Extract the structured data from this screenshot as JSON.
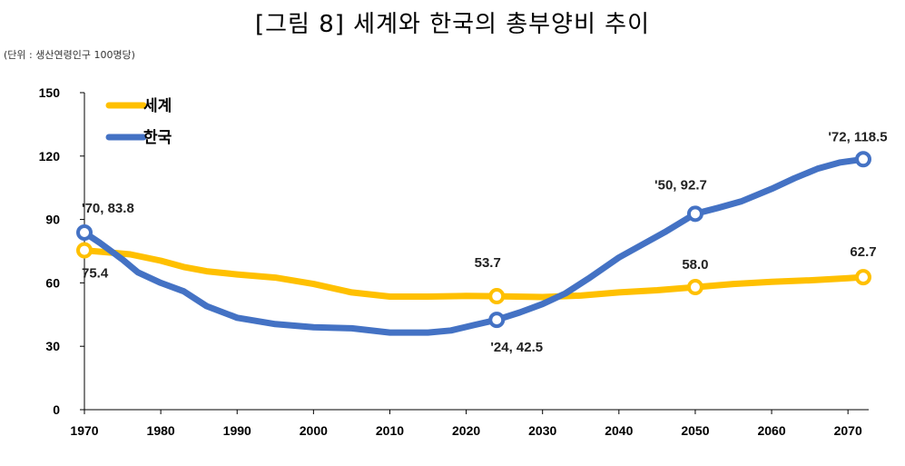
{
  "chart_data": {
    "type": "line",
    "title": "[그림 8] 세계와 한국의 총부양비 추이",
    "unit_note": "(단위 : 생산연령인구 100명당)",
    "xlabel": "",
    "ylabel": "",
    "xlim": [
      1970,
      2072
    ],
    "ylim": [
      0,
      150
    ],
    "x_ticks": [
      1970,
      1980,
      1990,
      2000,
      2010,
      2020,
      2030,
      2040,
      2050,
      2060,
      2070
    ],
    "y_ticks": [
      0,
      30,
      60,
      90,
      120,
      150
    ],
    "grid": false,
    "legend_position": "top-left",
    "series": [
      {
        "name": "세계",
        "color": "#FFC000",
        "x": [
          1970,
          1973,
          1976,
          1980,
          1983,
          1986,
          1990,
          1995,
          2000,
          2005,
          2010,
          2015,
          2020,
          2024,
          2030,
          2035,
          2040,
          2045,
          2050,
          2055,
          2060,
          2065,
          2070,
          2072
        ],
        "values": [
          75.4,
          74.5,
          73.5,
          70.5,
          67.5,
          65.5,
          64,
          62.5,
          59.5,
          55.5,
          53.5,
          53.5,
          53.8,
          53.7,
          53.3,
          54,
          55.5,
          56.5,
          58.0,
          59.5,
          60.5,
          61.2,
          62.2,
          62.7
        ]
      },
      {
        "name": "한국",
        "color": "#4472C4",
        "x": [
          1970,
          1972,
          1975,
          1977,
          1980,
          1983,
          1986,
          1990,
          1995,
          2000,
          2005,
          2010,
          2015,
          2018,
          2021,
          2024,
          2027,
          2030,
          2033,
          2036,
          2040,
          2043,
          2046,
          2050,
          2053,
          2056,
          2060,
          2063,
          2066,
          2069,
          2072
        ],
        "values": [
          83.8,
          79,
          71,
          65,
          60,
          56,
          49,
          43.5,
          40.5,
          39,
          38.5,
          36.5,
          36.5,
          37.5,
          40,
          42.5,
          46,
          50,
          55,
          62,
          72,
          78,
          84,
          92.7,
          95.5,
          98.5,
          104.5,
          109.5,
          114,
          117,
          118.5
        ]
      }
    ],
    "annotations": [
      {
        "series": "한국",
        "x": 1970,
        "y": 83.8,
        "text": "'70, 83.8",
        "marker": true
      },
      {
        "series": "세계",
        "x": 1970,
        "y": 75.4,
        "text": "75.4",
        "marker": true
      },
      {
        "series": "세계",
        "x": 2024,
        "y": 53.7,
        "text": "53.7",
        "marker": true
      },
      {
        "series": "한국",
        "x": 2024,
        "y": 42.5,
        "text": "'24, 42.5",
        "marker": true
      },
      {
        "series": "한국",
        "x": 2050,
        "y": 92.7,
        "text": "'50, 92.7",
        "marker": true
      },
      {
        "series": "세계",
        "x": 2050,
        "y": 58.0,
        "text": "58.0",
        "marker": true
      },
      {
        "series": "한국",
        "x": 2072,
        "y": 118.5,
        "text": "'72, 118.5",
        "marker": true
      },
      {
        "series": "세계",
        "x": 2072,
        "y": 62.7,
        "text": "62.7",
        "marker": true
      }
    ]
  }
}
